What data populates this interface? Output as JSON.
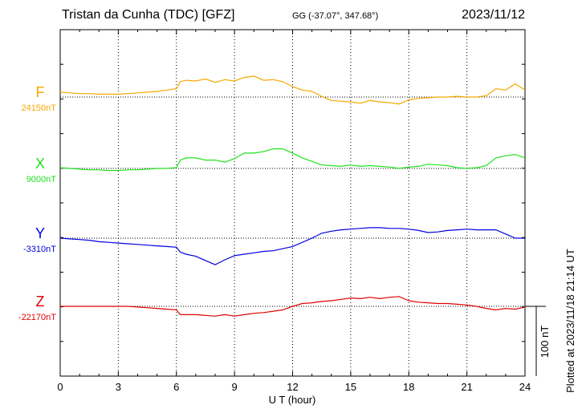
{
  "header": {
    "station": "Tristan da Cunha (TDC)  [GFZ]",
    "coords": "GG (-37.07°, 347.68°)",
    "date": "2023/11/12"
  },
  "footer": {
    "plotted": "Plotted at 2023/11/18 21:14 UT"
  },
  "chart_data": {
    "type": "line",
    "title": "Tristan da Cunha (TDC)  [GFZ]",
    "xlabel": "U T (hour)",
    "xlim": [
      0,
      24
    ],
    "xticks": [
      "0",
      "3",
      "6",
      "9",
      "12",
      "15",
      "18",
      "21",
      "24"
    ],
    "grid": true,
    "scale_bar": {
      "label": "100 nT",
      "value_nT": 100
    },
    "series": [
      {
        "name": "F",
        "baseline_label": "24150nT",
        "baseline": 24150,
        "color": "#f5a800",
        "x": [
          0,
          0.5,
          1,
          1.5,
          2,
          2.5,
          3,
          3.5,
          4,
          4.5,
          5,
          5.5,
          6,
          6.2,
          6.5,
          7,
          7.5,
          8,
          8.5,
          9,
          9.5,
          10,
          10.5,
          11,
          11.5,
          12,
          12.5,
          13,
          13.5,
          14,
          14.5,
          15,
          15.5,
          16,
          16.5,
          17,
          17.5,
          18,
          18.5,
          19,
          19.5,
          20,
          20.5,
          21,
          21.5,
          22,
          22.5,
          23,
          23.5,
          24
        ],
        "values": [
          24157,
          24156,
          24155,
          24155,
          24154,
          24154,
          24154,
          24155,
          24156,
          24157,
          24158,
          24160,
          24162,
          24172,
          24174,
          24173,
          24176,
          24171,
          24175,
          24173,
          24178,
          24180,
          24174,
          24175,
          24172,
          24165,
          24160,
          24158,
          24151,
          24145,
          24144,
          24143,
          24141,
          24145,
          24143,
          24142,
          24140,
          24146,
          24148,
          24149,
          24150,
          24150,
          24151,
          24150,
          24150,
          24152,
          24162,
          24160,
          24169,
          24160
        ]
      },
      {
        "name": "X",
        "baseline_label": "9000nT",
        "baseline": 9000,
        "color": "#1ee21e",
        "x": [
          0,
          0.5,
          1,
          1.5,
          2,
          2.5,
          3,
          3.5,
          4,
          4.5,
          5,
          5.5,
          6,
          6.2,
          6.5,
          7,
          7.5,
          8,
          8.5,
          9,
          9.5,
          10,
          10.5,
          11,
          11.5,
          12,
          12.5,
          13,
          13.5,
          14,
          14.5,
          15,
          15.5,
          16,
          16.5,
          17,
          17.5,
          18,
          18.5,
          19,
          19.5,
          20,
          20.5,
          21,
          21.5,
          22,
          22.5,
          23,
          23.5,
          24
        ],
        "values": [
          9001,
          9000,
          8999,
          8998,
          8998,
          8997,
          8997,
          8998,
          8998,
          8999,
          9000,
          9000,
          9001,
          9012,
          9015,
          9015,
          9012,
          9012,
          9009,
          9014,
          9022,
          9022,
          9024,
          9028,
          9028,
          9022,
          9015,
          9010,
          9005,
          9004,
          9003,
          9005,
          9003,
          9004,
          9003,
          9002,
          9000,
          9002,
          9003,
          9006,
          9005,
          9004,
          9001,
          9000,
          9001,
          9004,
          9015,
          9018,
          9020,
          9015
        ]
      },
      {
        "name": "Y",
        "baseline_label": "-3310nT",
        "baseline": -3310,
        "color": "#0000e0",
        "x": [
          0,
          0.5,
          1,
          1.5,
          2,
          2.5,
          3,
          3.5,
          4,
          4.5,
          5,
          5.5,
          6,
          6.2,
          6.5,
          7,
          7.5,
          8,
          8.5,
          9,
          9.5,
          10,
          10.5,
          11,
          11.5,
          12,
          12.5,
          13,
          13.5,
          14,
          14.5,
          15,
          15.5,
          16,
          16.5,
          17,
          17.5,
          18,
          18.5,
          19,
          19.5,
          20,
          20.5,
          21,
          21.5,
          22,
          22.5,
          23,
          23.5,
          24
        ],
        "values": [
          -3310,
          -3311,
          -3312,
          -3313,
          -3315,
          -3316,
          -3317,
          -3318,
          -3319,
          -3320,
          -3321,
          -3322,
          -3323,
          -3330,
          -3333,
          -3336,
          -3342,
          -3348,
          -3341,
          -3335,
          -3333,
          -3331,
          -3329,
          -3328,
          -3325,
          -3322,
          -3316,
          -3310,
          -3303,
          -3300,
          -3298,
          -3297,
          -3296,
          -3295,
          -3295,
          -3296,
          -3296,
          -3297,
          -3299,
          -3302,
          -3301,
          -3299,
          -3298,
          -3297,
          -3298,
          -3298,
          -3298,
          -3304,
          -3310,
          -3310
        ]
      },
      {
        "name": "Z",
        "baseline_label": "-22170nT",
        "baseline": -22170,
        "color": "#e00000",
        "x": [
          0,
          0.5,
          1,
          1.5,
          2,
          2.5,
          3,
          3.5,
          4,
          4.5,
          5,
          5.5,
          6,
          6.2,
          6.5,
          7,
          7.5,
          8,
          8.5,
          9,
          9.5,
          10,
          10.5,
          11,
          11.5,
          12,
          12.5,
          13,
          13.5,
          14,
          14.5,
          15,
          15.5,
          16,
          16.5,
          17,
          17.5,
          18,
          18.5,
          19,
          19.5,
          20,
          20.5,
          21,
          21.5,
          22,
          22.5,
          23,
          23.5,
          24
        ],
        "values": [
          -22170,
          -22170,
          -22170,
          -22170,
          -22170,
          -22170,
          -22170,
          -22170,
          -22171,
          -22172,
          -22173,
          -22174,
          -22175,
          -22182,
          -22182,
          -22182,
          -22183,
          -22184,
          -22182,
          -22184,
          -22182,
          -22180,
          -22179,
          -22177,
          -22175,
          -22170,
          -22166,
          -22165,
          -22163,
          -22162,
          -22160,
          -22158,
          -22159,
          -22157,
          -22159,
          -22157,
          -22156,
          -22162,
          -22164,
          -22165,
          -22166,
          -22166,
          -22167,
          -22168,
          -22170,
          -22173,
          -22175,
          -22173,
          -22174,
          -22171
        ]
      }
    ]
  }
}
